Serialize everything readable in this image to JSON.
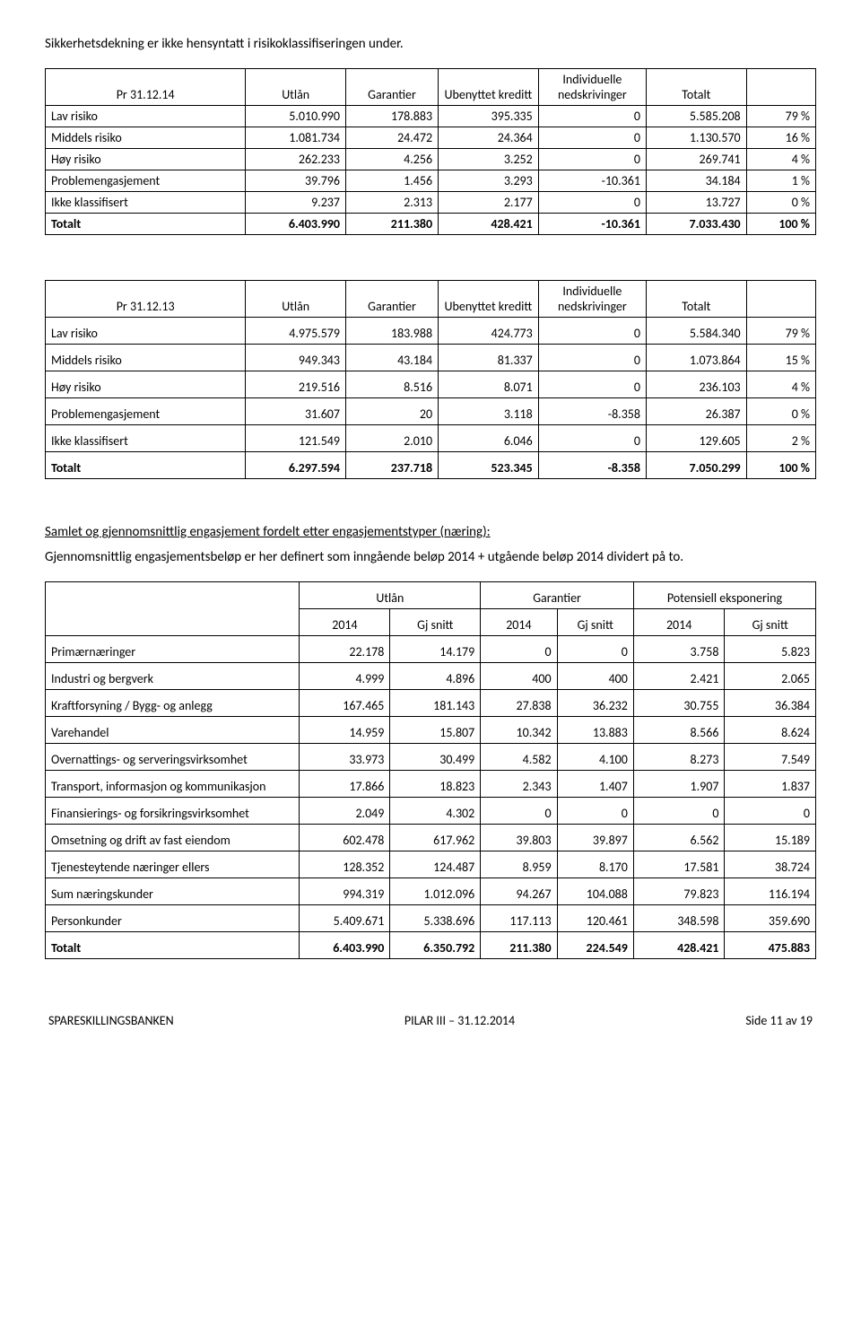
{
  "intro": "Sikkerhetsdekning er ikke hensyntatt i risikoklassifiseringen under.",
  "table1": {
    "headers": [
      "Pr 31.12.14",
      "Utlån",
      "Garantier",
      "Ubenyttet kreditt",
      "Individuelle nedskrivinger",
      "Totalt",
      ""
    ],
    "rows": [
      [
        "Lav risiko",
        "5.010.990",
        "178.883",
        "395.335",
        "0",
        "5.585.208",
        "79 %"
      ],
      [
        "Middels risiko",
        "1.081.734",
        "24.472",
        "24.364",
        "0",
        "1.130.570",
        "16 %"
      ],
      [
        "Høy risiko",
        "262.233",
        "4.256",
        "3.252",
        "0",
        "269.741",
        "4 %"
      ],
      [
        "Problemengasjement",
        "39.796",
        "1.456",
        "3.293",
        "-10.361",
        "34.184",
        "1 %"
      ],
      [
        "Ikke klassifisert",
        "9.237",
        "2.313",
        "2.177",
        "0",
        "13.727",
        "0 %"
      ],
      [
        "Totalt",
        "6.403.990",
        "211.380",
        "428.421",
        "-10.361",
        "7.033.430",
        "100 %"
      ]
    ]
  },
  "table2": {
    "headers": [
      "Pr 31.12.13",
      "Utlån",
      "Garantier",
      "Ubenyttet kreditt",
      "Individuelle nedskrivinger",
      "Totalt",
      ""
    ],
    "rows": [
      [
        "Lav risiko",
        "4.975.579",
        "183.988",
        "424.773",
        "0",
        "5.584.340",
        "79 %"
      ],
      [
        "Middels risiko",
        "949.343",
        "43.184",
        "81.337",
        "0",
        "1.073.864",
        "15 %"
      ],
      [
        "Høy risiko",
        "219.516",
        "8.516",
        "8.071",
        "0",
        "236.103",
        "4 %"
      ],
      [
        "Problemengasjement",
        "31.607",
        "20",
        "3.118",
        "-8.358",
        "26.387",
        "0 %"
      ],
      [
        "Ikke klassifisert",
        "121.549",
        "2.010",
        "6.046",
        "0",
        "129.605",
        "2 %"
      ],
      [
        "Totalt",
        "6.297.594",
        "237.718",
        "523.345",
        "-8.358",
        "7.050.299",
        "100 %"
      ]
    ]
  },
  "section_title": "Samlet og gjennomsnittlig engasjement fordelt etter engasjementstyper (næring):",
  "desc": "Gjennomsnittlig engasjementsbeløp er her definert som inngående beløp 2014 + utgående beløp 2014 dividert på to.",
  "table3": {
    "top_headers": [
      "",
      "Utlån",
      "Garantier",
      "Potensiell eksponering"
    ],
    "sub_headers": [
      "",
      "2014",
      "Gj snitt",
      "2014",
      "Gj snitt",
      "2014",
      "Gj snitt"
    ],
    "rows": [
      [
        "Primærnæringer",
        "22.178",
        "14.179",
        "0",
        "0",
        "3.758",
        "5.823"
      ],
      [
        "Industri og bergverk",
        "4.999",
        "4.896",
        "400",
        "400",
        "2.421",
        "2.065"
      ],
      [
        "Kraftforsyning / Bygg- og anlegg",
        "167.465",
        "181.143",
        "27.838",
        "36.232",
        "30.755",
        "36.384"
      ],
      [
        "Varehandel",
        "14.959",
        "15.807",
        "10.342",
        "13.883",
        "8.566",
        "8.624"
      ],
      [
        "Overnattings- og serveringsvirksomhet",
        "33.973",
        "30.499",
        "4.582",
        "4.100",
        "8.273",
        "7.549"
      ],
      [
        "Transport, informasjon og kommunikasjon",
        "17.866",
        "18.823",
        "2.343",
        "1.407",
        "1.907",
        "1.837"
      ],
      [
        "Finansierings- og forsikringsvirksomhet",
        "2.049",
        "4.302",
        "0",
        "0",
        "0",
        "0"
      ],
      [
        "Omsetning og drift av fast eiendom",
        "602.478",
        "617.962",
        "39.803",
        "39.897",
        "6.562",
        "15.189"
      ],
      [
        "Tjenesteytende næringer ellers",
        "128.352",
        "124.487",
        "8.959",
        "8.170",
        "17.581",
        "38.724"
      ],
      [
        "Sum næringskunder",
        "994.319",
        "1.012.096",
        "94.267",
        "104.088",
        "79.823",
        "116.194"
      ],
      [
        "Personkunder",
        "5.409.671",
        "5.338.696",
        "117.113",
        "120.461",
        "348.598",
        "359.690"
      ],
      [
        "Totalt",
        "6.403.990",
        "6.350.792",
        "211.380",
        "224.549",
        "428.421",
        "475.883"
      ]
    ]
  },
  "footer": {
    "left": "SPARESKILLINGSBANKEN",
    "center": "PILAR III – 31.12.2014",
    "right": "Side 11 av 19"
  }
}
